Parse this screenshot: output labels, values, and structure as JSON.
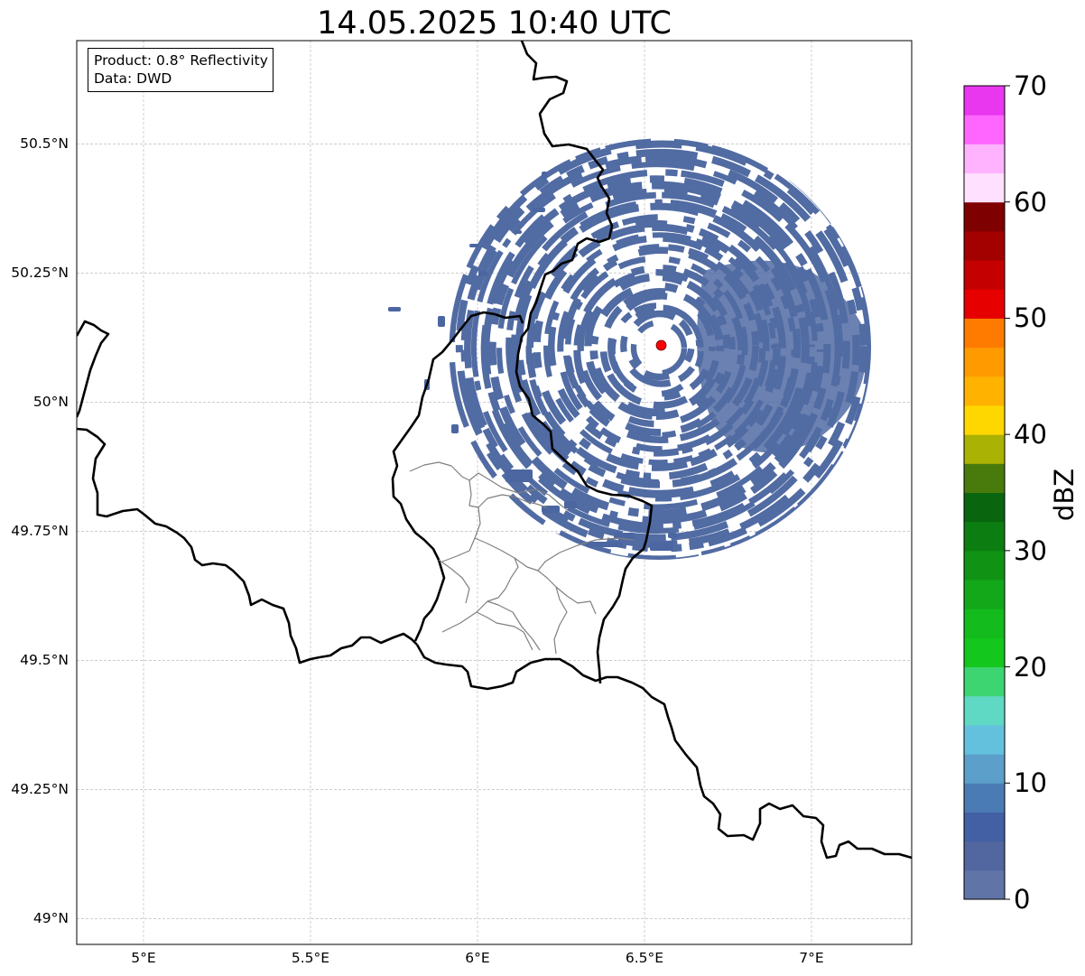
{
  "title": "14.05.2025 10:40 UTC",
  "info": {
    "product": "Product: 0.8° Reflectivity",
    "data": "Data: DWD"
  },
  "lat_ticks": [
    {
      "value": 50.5,
      "label": "50.5°N"
    },
    {
      "value": 50.25,
      "label": "50.25°N"
    },
    {
      "value": 50.0,
      "label": "50°N"
    },
    {
      "value": 49.75,
      "label": "49.75°N"
    },
    {
      "value": 49.5,
      "label": "49.5°N"
    },
    {
      "value": 49.25,
      "label": "49.25°N"
    },
    {
      "value": 49.0,
      "label": "49°N"
    }
  ],
  "lon_ticks": [
    {
      "value": 5.0,
      "label": "5°E"
    },
    {
      "value": 5.5,
      "label": "5.5°E"
    },
    {
      "value": 6.0,
      "label": "6°E"
    },
    {
      "value": 6.5,
      "label": "6.5°E"
    },
    {
      "value": 7.0,
      "label": "7°E"
    }
  ],
  "extent": {
    "lon_min": 4.8,
    "lon_max": 7.3,
    "lat_min": 48.95,
    "lat_max": 50.7
  },
  "radar_site": {
    "lon": 6.55,
    "lat": 50.11,
    "color": "#ff0000"
  },
  "colorbar": {
    "label": "dBZ",
    "min": 0,
    "max": 70,
    "step": 2.5,
    "tick_labels": [
      "0",
      "10",
      "20",
      "30",
      "40",
      "50",
      "60",
      "70"
    ],
    "colors": [
      "#6174a8",
      "#5266a0",
      "#4260a3",
      "#4b7bb4",
      "#5b9fca",
      "#64c1de",
      "#5fd8c4",
      "#3dd572",
      "#13c71c",
      "#13bb1c",
      "#12a81a",
      "#109315",
      "#0c7e11",
      "#09660e",
      "#497a0c",
      "#aab203",
      "#ffd700",
      "#ffb300",
      "#ff9a00",
      "#ff7b00",
      "#e60000",
      "#c50000",
      "#a30000",
      "#7f0000",
      "#ffe0ff",
      "#ffb3ff",
      "#ff66ff",
      "#e936ef"
    ]
  },
  "echo": {
    "main_color": "#4b66a0"
  }
}
